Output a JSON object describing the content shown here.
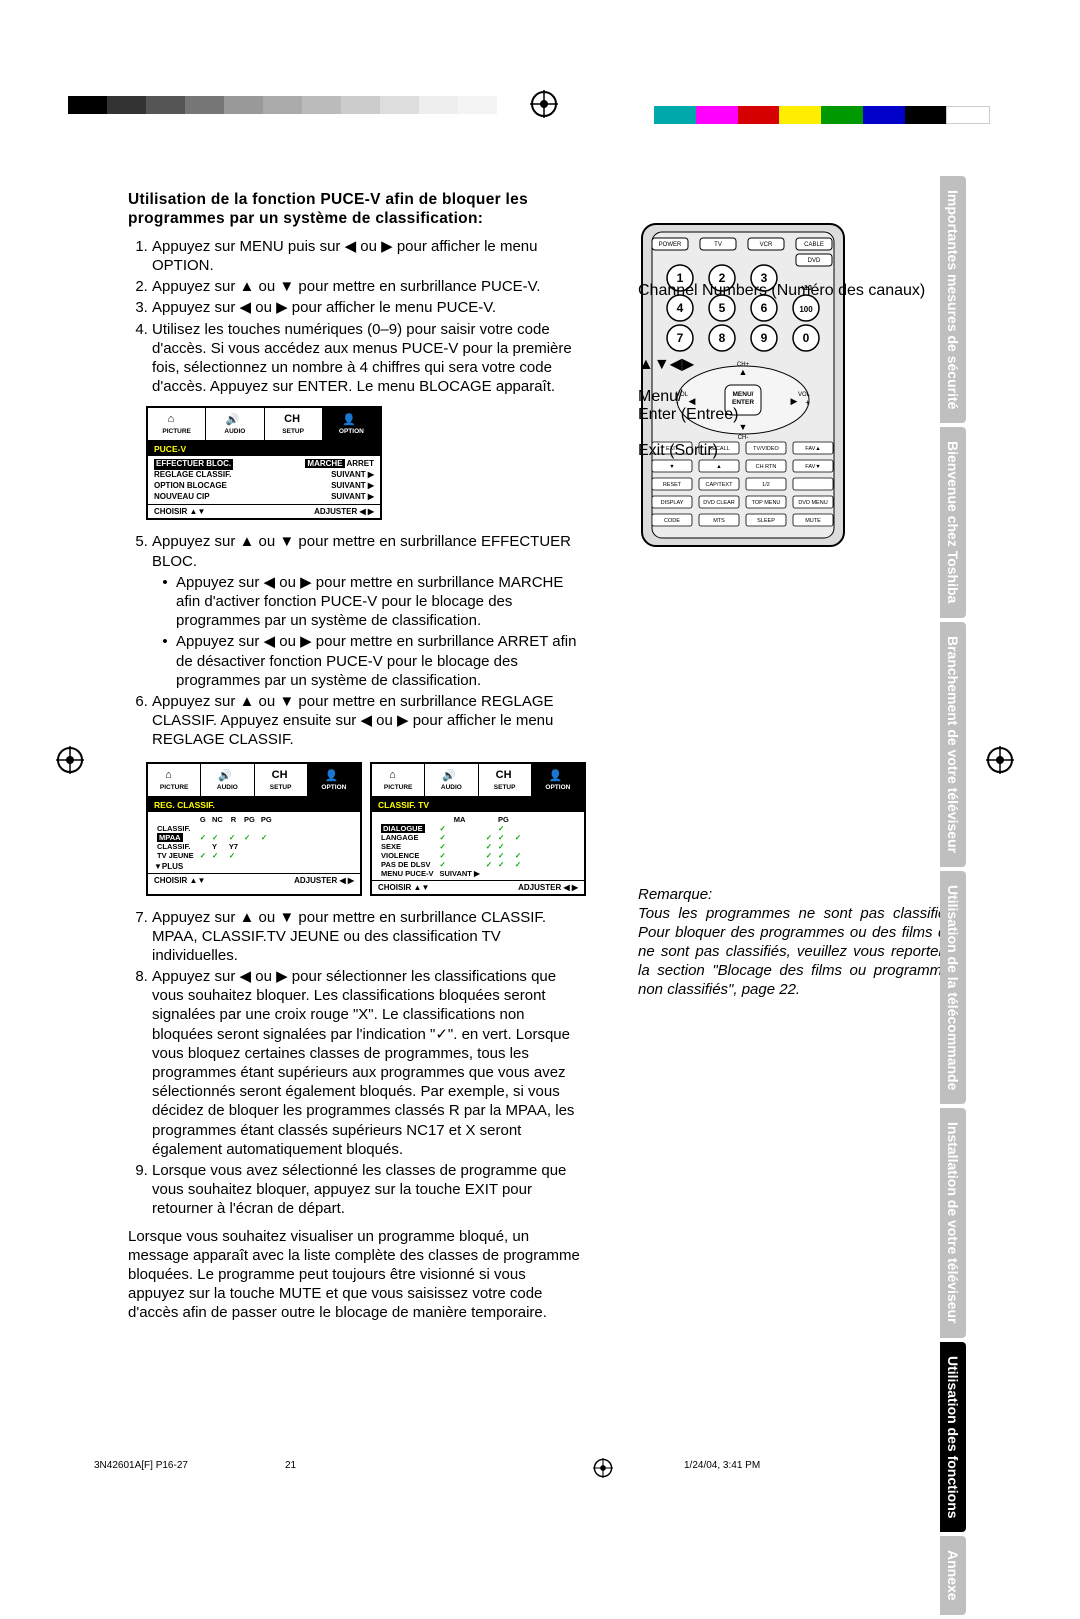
{
  "heading": "Utilisation de la fonction PUCE-V afin de bloquer les programmes par un système de classification:",
  "steps_a": [
    "Appuyez sur MENU puis sur ◀ ou ▶ pour afficher le menu OPTION.",
    "Appuyez sur ▲ ou ▼ pour mettre en surbrillance PUCE-V.",
    "Appuyez sur ◀ ou ▶ pour afficher le menu PUCE-V.",
    "Utilisez les touches numériques (0–9) pour saisir votre code d'accès. Si vous accédez aux menus PUCE-V pour la première fois, sélectionnez un nombre à 4 chiffres qui sera votre code d'accès. Appuyez sur ENTER. Le menu BLOCAGE apparaît."
  ],
  "steps_b": [
    "Appuyez sur ▲ ou ▼ pour mettre en surbrillance EFFECTUER BLOC.",
    "Appuyez sur ▲ ou ▼ pour mettre en surbrillance REGLAGE CLASSIF. Appuyez ensuite sur ◀ ou ▶ pour afficher le menu REGLAGE CLASSIF."
  ],
  "bullets_5": [
    "Appuyez sur ◀ ou ▶ pour mettre en surbrillance MARCHE afin d'activer fonction PUCE-V pour le blocage des programmes par un système de classification.",
    "Appuyez sur ◀ ou ▶ pour mettre en surbrillance ARRET afin de désactiver fonction PUCE-V  pour le blocage des programmes par un système de classification."
  ],
  "steps_c": [
    "Appuyez sur ▲ ou ▼ pour mettre en surbrillance CLASSIF. MPAA, CLASSIF.TV JEUNE ou des classification TV individuelles.",
    "Appuyez sur ◀ ou ▶ pour sélectionner les classifications que vous souhaitez bloquer. Les classifications bloquées seront signalées par une croix rouge \"X\". Le classifications non bloquées seront signalées par l'indication \"✓\". en vert. Lorsque vous bloquez certaines classes de programmes, tous les programmes étant supérieurs aux programmes que vous avez sélectionnés seront également bloqués. Par exemple, si vous décidez de bloquer les programmes classés R par la MPAA, les programmes étant classés supérieurs NC17 et X seront également automatiquement bloqués.",
    "Lorsque vous avez sélectionné les classes de programme que vous souhaitez bloquer, appuyez sur la touche EXIT pour retourner à l'écran de départ."
  ],
  "closing": "Lorsque vous souhaitez visualiser un programme bloqué, un message apparaît avec la liste complète des classes de programme bloquées. Le programme peut toujours être visionné si vous appuyez sur la touche MUTE et que vous saisissez votre code d'accès afin de passer outre le blocage de manière temporaire.",
  "osd": {
    "tabs": [
      "PICTURE",
      "AUDIO",
      "SETUP",
      "OPTION"
    ],
    "menu1": {
      "title": "PUCE-V",
      "rows": [
        {
          "l": "EFFECTUER BLOC.",
          "r": "MARCHE  ARRET",
          "sel": true
        },
        {
          "l": "REGLAGE CLASSIF.",
          "r": "SUIVANT ▶"
        },
        {
          "l": "OPTION BLOCAGE",
          "r": "SUIVANT ▶"
        },
        {
          "l": "NOUVEAU CIP",
          "r": "SUIVANT ▶"
        }
      ],
      "foot_l": "CHOISIR   ▲▼",
      "foot_r": "ADJUSTER ◀ ▶"
    },
    "menu2": {
      "title": "REG. CLASSIF.",
      "cols": [
        "",
        "G",
        "NC",
        "R",
        "PG",
        "PG"
      ],
      "rows": [
        {
          "l": "CLASSIF.",
          "cells": [
            "",
            "",
            "",
            "",
            ""
          ]
        },
        {
          "l": "MPAA",
          "cells": [
            "✓",
            "✓",
            "✓",
            "✓",
            "✓"
          ],
          "sel": true
        },
        {
          "l": "CLASSIF.",
          "cells": [
            "",
            "Y",
            "Y7",
            "",
            "",
            ""
          ]
        },
        {
          "l": "TV JEUNE",
          "cells": [
            "✓",
            "✓",
            "✓",
            "",
            ""
          ]
        }
      ],
      "extra": "▼PLUS",
      "foot_l": "CHOISIR   ▲▼",
      "foot_r": "ADJUSTER ◀ ▶"
    },
    "menu3": {
      "title": "CLASSIF. TV",
      "cols": [
        "",
        "MA",
        "",
        "PG",
        ""
      ],
      "rows": [
        {
          "l": "DIALOGUE",
          "cells": [
            "✓",
            "",
            "✓",
            ""
          ],
          "sel": true
        },
        {
          "l": "LANGAGE",
          "cells": [
            "✓",
            "✓",
            "✓",
            "✓"
          ]
        },
        {
          "l": "SEXE",
          "cells": [
            "✓",
            "✓",
            "✓",
            ""
          ]
        },
        {
          "l": "VIOLENCE",
          "cells": [
            "✓",
            "✓",
            "✓",
            "✓"
          ]
        },
        {
          "l": "PAS DE DLSV",
          "cells": [
            "✓",
            "✓",
            "✓",
            "✓"
          ]
        },
        {
          "l": "MENU PUCE-V",
          "cells": [
            "SUIVANT ▶"
          ]
        }
      ],
      "foot_l": "CHOISIR   ▲▼",
      "foot_r": "ADJUSTER ◀ ▶"
    }
  },
  "remote": {
    "label_channels": "Channel Numbers (Numéro des canaux)",
    "label_arrows": "▲▼◀▶",
    "label_menu": "Menu/\nEnter (Entree)",
    "label_exit": "Exit (Sortir)",
    "row1": [
      "POWER",
      "TV",
      "VCR",
      "CABLE"
    ],
    "row_dvd": "DVD",
    "keypad": [
      "1",
      "2",
      "3",
      "4",
      "5",
      "6",
      "7",
      "8",
      "9",
      "0"
    ],
    "key100": "100",
    "key10": "+10",
    "nav": [
      "CH+",
      "CH-",
      "VOL -",
      "VOL +",
      "MENU/\nENTER"
    ],
    "row4": [
      "EXIT",
      "RECALL",
      "TV/VIDEO",
      "FAV▲"
    ],
    "row5": [
      "▼",
      "▲",
      "CH RTN",
      "FAV▼"
    ],
    "row6": [
      "RESET",
      "CAP/TEXT",
      "1/2",
      ""
    ],
    "row7": [
      "DISPLAY",
      "DVD CLEAR",
      "TOP MENU",
      "DVD MENU"
    ],
    "row8": [
      "CODE",
      "MTS",
      "SLEEP",
      "MUTE"
    ]
  },
  "remarque": {
    "title": "Remarque:",
    "body": "Tous les programmes ne sont pas classifiés. Pour bloquer des programmes ou des films qui ne sont pas classifiés, veuillez vous reporter à la section \"Blocage des films ou programmes non classifiés\", page 22."
  },
  "tabs": [
    {
      "t": "Importantes mesures de sécurité",
      "c": "gray"
    },
    {
      "t": "Bienvenue chez Toshiba",
      "c": "gray"
    },
    {
      "t": "Branchement de votre téléviseur",
      "c": "gray"
    },
    {
      "t": "Utilisation de la télécommande",
      "c": "gray"
    },
    {
      "t": "Installation de votre téléviseur",
      "c": "gray"
    },
    {
      "t": "Utilisation des fonctions",
      "c": "black"
    },
    {
      "t": "Annexe",
      "c": "gray"
    }
  ],
  "footer": {
    "left": "3N42601A[F] P16-27",
    "page": "21",
    "right": "1/24/04, 3:41 PM"
  },
  "colors": {
    "bar_top": [
      "#000",
      "#333",
      "#555",
      "#777",
      "#999",
      "#aaa",
      "#bbb",
      "#ccc",
      "#ddd",
      "#eee",
      "#f4f4f4",
      "#fff"
    ],
    "bar_bot": [
      "#00aaac",
      "#ff00ff",
      "#d60000",
      "#ffee00",
      "#009a00",
      "#0000c8",
      "#000000",
      "#ffffff"
    ]
  }
}
